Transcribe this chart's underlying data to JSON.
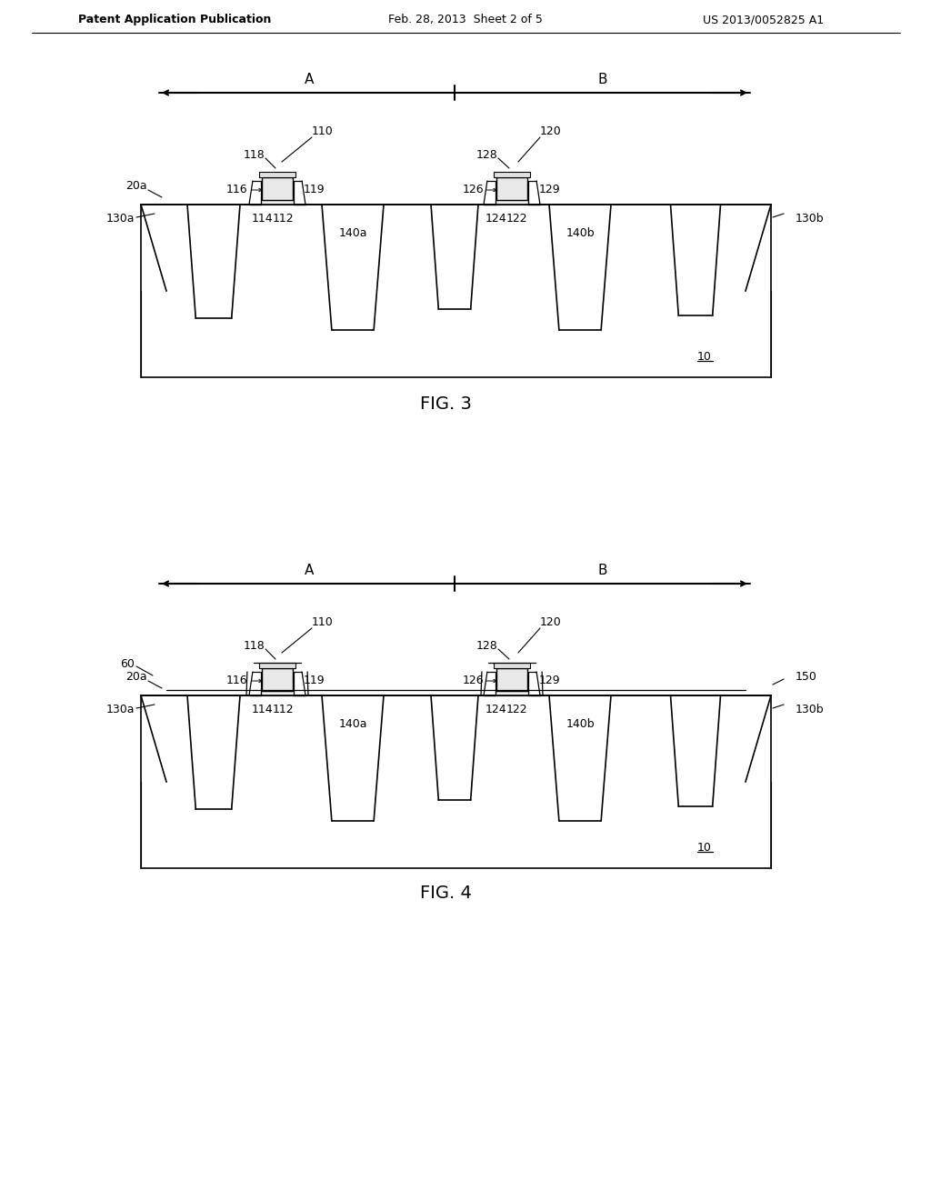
{
  "bg_color": "#ffffff",
  "line_color": "#000000",
  "header_text": "Patent Application Publication",
  "header_date": "Feb. 28, 2013  Sheet 2 of 5",
  "header_patent": "US 2013/0052825 A1",
  "fig3_label": "FIG. 3",
  "fig4_label": "FIG. 4"
}
